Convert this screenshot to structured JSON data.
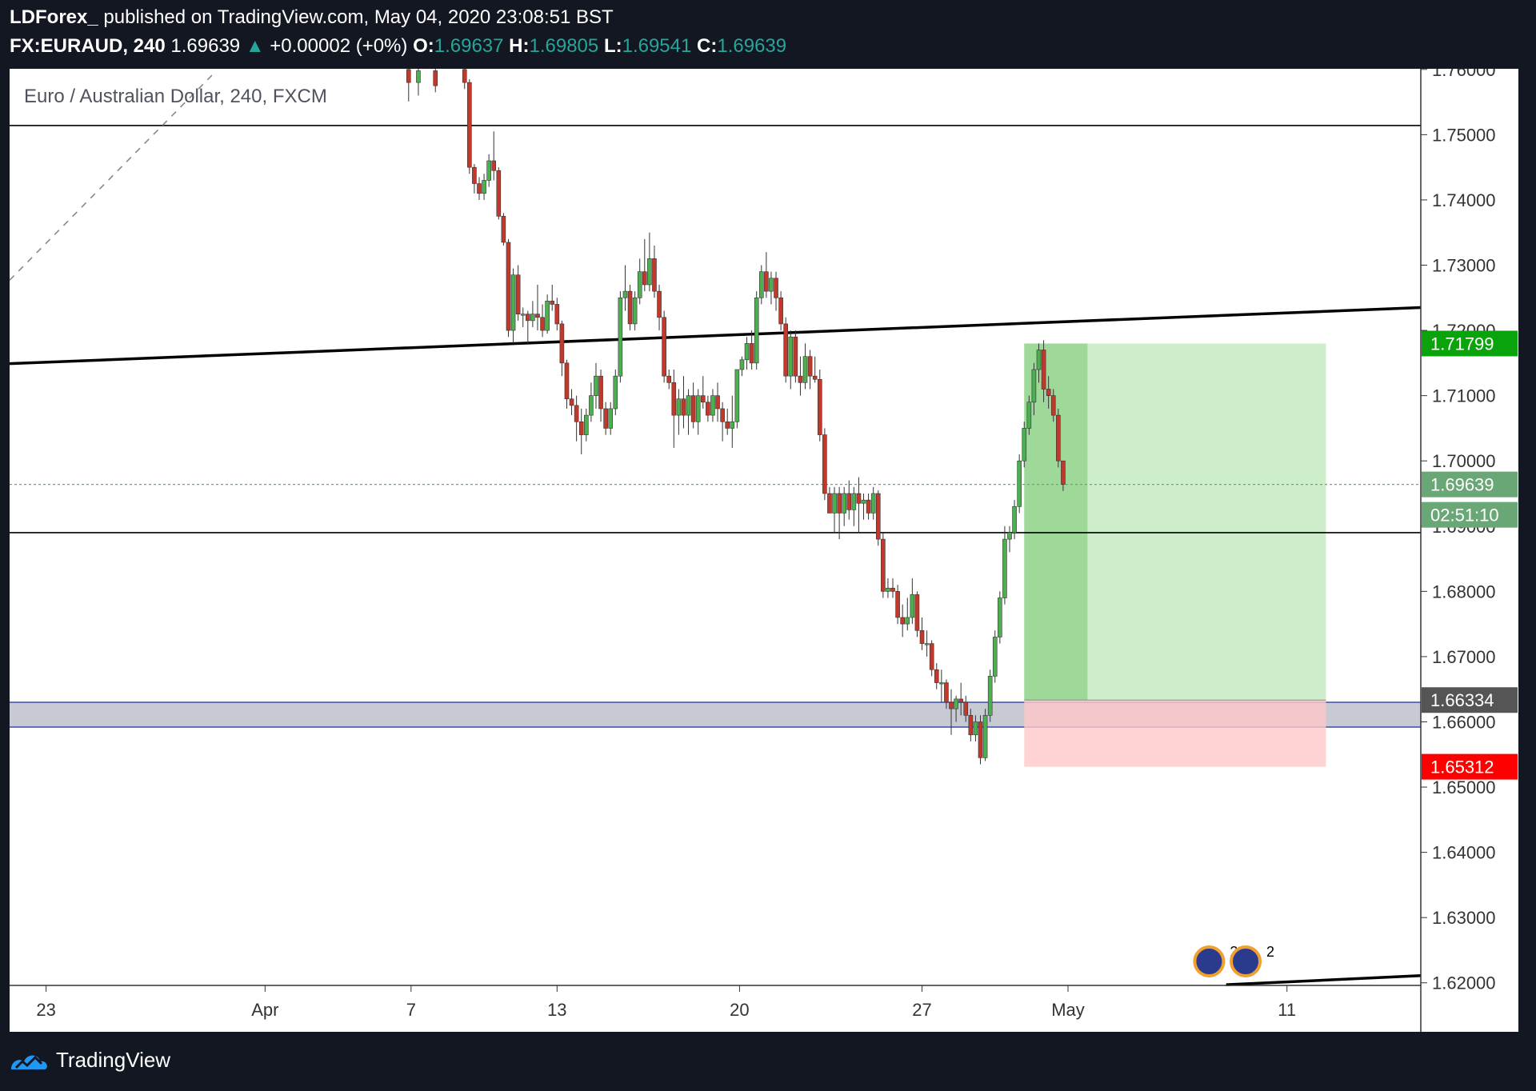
{
  "header": {
    "publisher": "LDForex_",
    "published_text": "published on TradingView.com, May 04, 2020 23:08:51 BST",
    "symbol": "FX:EURAUD, 240",
    "last_price": "1.69639",
    "change": "+0.00002 (+0%)",
    "o_label": "O:",
    "o_value": "1.69637",
    "h_label": "H:",
    "h_value": "1.69805",
    "l_label": "L:",
    "l_value": "1.69541",
    "c_label": "C:",
    "c_value": "1.69639"
  },
  "footer": {
    "brand": "TradingView"
  },
  "colors": {
    "up": "#4caf50",
    "down": "#c0392b",
    "profit_zone": "#c8ebc5",
    "profit_strong": "#8fd18a",
    "loss_zone": "#ffc8c8",
    "support_zone": "#c7c9d3",
    "support_border": "#3d4ca8",
    "price_current": "#6aa776",
    "price_target": "#0ba30b",
    "price_stop": "#ff0000",
    "price_entry": "#555555"
  },
  "chart_data": {
    "type": "candlestick",
    "title": "Euro / Australian Dollar, 240, FXCM",
    "y_axis": {
      "ticks": [
        "1.76000",
        "1.75000",
        "1.74000",
        "1.73000",
        "1.72000",
        "1.71000",
        "1.70000",
        "1.69000",
        "1.68000",
        "1.67000",
        "1.66000",
        "1.65000",
        "1.64000",
        "1.63000",
        "1.62000"
      ],
      "range": [
        1.6196,
        1.7601
      ]
    },
    "x_axis": {
      "ticks": [
        {
          "label": "23",
          "value": 0
        },
        {
          "label": "Apr",
          "value": 9
        },
        {
          "label": "7",
          "value": 15
        },
        {
          "label": "13",
          "value": 21
        },
        {
          "label": "20",
          "value": 28.5
        },
        {
          "label": "27",
          "value": 36
        },
        {
          "label": "May",
          "value": 42
        },
        {
          "label": "11",
          "value": 51
        }
      ],
      "range": [
        -1.5,
        56.5
      ]
    },
    "price_labels": {
      "target": "1.71799",
      "current": "1.69639",
      "countdown": "02:51:10",
      "entry": "1.66334",
      "stop": "1.65312"
    },
    "horizontal_lines": [
      1.7514,
      1.689
    ],
    "trendlines": [
      {
        "x1": -1.5,
        "y1": 1.7149,
        "x2": 56.5,
        "y2": 1.7235,
        "style": "solid"
      },
      {
        "x1": -1.5,
        "y1": 1.7277,
        "x2": 7.0,
        "y2": 1.7598,
        "style": "dashed"
      },
      {
        "x1": 48.5,
        "y1": 1.6197,
        "x2": 56.5,
        "y2": 1.6211,
        "style": "solid"
      }
    ],
    "support_zone": {
      "top": 1.663,
      "bottom": 1.6592
    },
    "position": {
      "entry": 1.66334,
      "target": 1.71799,
      "stop": 1.65312,
      "x_start": 40.2,
      "x_end": 52.6,
      "filled_until": 42.8
    },
    "candles": [
      {
        "x": 14.9,
        "o": 1.76,
        "h": 1.7602,
        "l": 1.7551,
        "c": 1.758
      },
      {
        "x": 15.3,
        "o": 1.758,
        "h": 1.7602,
        "l": 1.756,
        "c": 1.7598
      },
      {
        "x": 16.0,
        "o": 1.7598,
        "h": 1.7602,
        "l": 1.7565,
        "c": 1.7575
      },
      {
        "x": 17.2,
        "o": 1.76,
        "h": 1.7602,
        "l": 1.757,
        "c": 1.758
      },
      {
        "x": 17.4,
        "o": 1.758,
        "h": 1.7585,
        "l": 1.744,
        "c": 1.745
      },
      {
        "x": 17.6,
        "o": 1.745,
        "h": 1.7455,
        "l": 1.741,
        "c": 1.7425
      },
      {
        "x": 17.8,
        "o": 1.7425,
        "h": 1.7435,
        "l": 1.74,
        "c": 1.741
      },
      {
        "x": 18.0,
        "o": 1.741,
        "h": 1.744,
        "l": 1.74,
        "c": 1.743
      },
      {
        "x": 18.2,
        "o": 1.743,
        "h": 1.747,
        "l": 1.742,
        "c": 1.746
      },
      {
        "x": 18.4,
        "o": 1.746,
        "h": 1.7505,
        "l": 1.743,
        "c": 1.7445
      },
      {
        "x": 18.6,
        "o": 1.7445,
        "h": 1.745,
        "l": 1.737,
        "c": 1.7375
      },
      {
        "x": 18.8,
        "o": 1.7375,
        "h": 1.738,
        "l": 1.733,
        "c": 1.7335
      },
      {
        "x": 19.0,
        "o": 1.7335,
        "h": 1.734,
        "l": 1.719,
        "c": 1.72
      },
      {
        "x": 19.2,
        "o": 1.72,
        "h": 1.7295,
        "l": 1.718,
        "c": 1.7285
      },
      {
        "x": 19.4,
        "o": 1.7285,
        "h": 1.73,
        "l": 1.7215,
        "c": 1.7225
      },
      {
        "x": 19.6,
        "o": 1.7225,
        "h": 1.7235,
        "l": 1.7205,
        "c": 1.7225
      },
      {
        "x": 19.8,
        "o": 1.7225,
        "h": 1.723,
        "l": 1.718,
        "c": 1.7215
      },
      {
        "x": 20.0,
        "o": 1.7215,
        "h": 1.7245,
        "l": 1.7205,
        "c": 1.7225
      },
      {
        "x": 20.2,
        "o": 1.7225,
        "h": 1.727,
        "l": 1.72,
        "c": 1.722
      },
      {
        "x": 20.4,
        "o": 1.722,
        "h": 1.724,
        "l": 1.719,
        "c": 1.72
      },
      {
        "x": 20.6,
        "o": 1.72,
        "h": 1.7255,
        "l": 1.7195,
        "c": 1.7245
      },
      {
        "x": 20.8,
        "o": 1.7245,
        "h": 1.727,
        "l": 1.723,
        "c": 1.724
      },
      {
        "x": 21.0,
        "o": 1.724,
        "h": 1.725,
        "l": 1.72,
        "c": 1.721
      },
      {
        "x": 21.2,
        "o": 1.721,
        "h": 1.7215,
        "l": 1.713,
        "c": 1.715
      },
      {
        "x": 21.4,
        "o": 1.715,
        "h": 1.7155,
        "l": 1.708,
        "c": 1.7095
      },
      {
        "x": 21.6,
        "o": 1.7095,
        "h": 1.711,
        "l": 1.707,
        "c": 1.7085
      },
      {
        "x": 21.8,
        "o": 1.7085,
        "h": 1.71,
        "l": 1.703,
        "c": 1.706
      },
      {
        "x": 22.0,
        "o": 1.706,
        "h": 1.708,
        "l": 1.701,
        "c": 1.704
      },
      {
        "x": 22.2,
        "o": 1.704,
        "h": 1.708,
        "l": 1.703,
        "c": 1.707
      },
      {
        "x": 22.4,
        "o": 1.707,
        "h": 1.712,
        "l": 1.706,
        "c": 1.71
      },
      {
        "x": 22.6,
        "o": 1.71,
        "h": 1.715,
        "l": 1.708,
        "c": 1.713
      },
      {
        "x": 22.8,
        "o": 1.713,
        "h": 1.714,
        "l": 1.706,
        "c": 1.708
      },
      {
        "x": 23.0,
        "o": 1.708,
        "h": 1.709,
        "l": 1.704,
        "c": 1.705
      },
      {
        "x": 23.2,
        "o": 1.705,
        "h": 1.709,
        "l": 1.704,
        "c": 1.708
      },
      {
        "x": 23.4,
        "o": 1.708,
        "h": 1.714,
        "l": 1.707,
        "c": 1.713
      },
      {
        "x": 23.6,
        "o": 1.713,
        "h": 1.726,
        "l": 1.712,
        "c": 1.725
      },
      {
        "x": 23.8,
        "o": 1.725,
        "h": 1.73,
        "l": 1.723,
        "c": 1.726
      },
      {
        "x": 24.0,
        "o": 1.726,
        "h": 1.727,
        "l": 1.72,
        "c": 1.721
      },
      {
        "x": 24.2,
        "o": 1.721,
        "h": 1.726,
        "l": 1.72,
        "c": 1.725
      },
      {
        "x": 24.4,
        "o": 1.725,
        "h": 1.731,
        "l": 1.724,
        "c": 1.729
      },
      {
        "x": 24.6,
        "o": 1.729,
        "h": 1.734,
        "l": 1.726,
        "c": 1.727
      },
      {
        "x": 24.8,
        "o": 1.727,
        "h": 1.735,
        "l": 1.726,
        "c": 1.731
      },
      {
        "x": 25.0,
        "o": 1.731,
        "h": 1.733,
        "l": 1.725,
        "c": 1.726
      },
      {
        "x": 25.2,
        "o": 1.726,
        "h": 1.727,
        "l": 1.72,
        "c": 1.722
      },
      {
        "x": 25.4,
        "o": 1.722,
        "h": 1.723,
        "l": 1.712,
        "c": 1.713
      },
      {
        "x": 25.6,
        "o": 1.713,
        "h": 1.714,
        "l": 1.711,
        "c": 1.712
      },
      {
        "x": 25.8,
        "o": 1.712,
        "h": 1.714,
        "l": 1.702,
        "c": 1.707
      },
      {
        "x": 26.0,
        "o": 1.707,
        "h": 1.711,
        "l": 1.704,
        "c": 1.7095
      },
      {
        "x": 26.2,
        "o": 1.7095,
        "h": 1.713,
        "l": 1.705,
        "c": 1.707
      },
      {
        "x": 26.4,
        "o": 1.707,
        "h": 1.711,
        "l": 1.704,
        "c": 1.71
      },
      {
        "x": 26.6,
        "o": 1.71,
        "h": 1.712,
        "l": 1.705,
        "c": 1.706
      },
      {
        "x": 26.8,
        "o": 1.706,
        "h": 1.711,
        "l": 1.704,
        "c": 1.71
      },
      {
        "x": 27.0,
        "o": 1.71,
        "h": 1.713,
        "l": 1.708,
        "c": 1.709
      },
      {
        "x": 27.2,
        "o": 1.709,
        "h": 1.71,
        "l": 1.706,
        "c": 1.707
      },
      {
        "x": 27.4,
        "o": 1.707,
        "h": 1.711,
        "l": 1.706,
        "c": 1.71
      },
      {
        "x": 27.6,
        "o": 1.71,
        "h": 1.712,
        "l": 1.706,
        "c": 1.708
      },
      {
        "x": 27.8,
        "o": 1.708,
        "h": 1.709,
        "l": 1.703,
        "c": 1.706
      },
      {
        "x": 28.0,
        "o": 1.706,
        "h": 1.708,
        "l": 1.704,
        "c": 1.705
      },
      {
        "x": 28.2,
        "o": 1.705,
        "h": 1.71,
        "l": 1.702,
        "c": 1.706
      },
      {
        "x": 28.4,
        "o": 1.706,
        "h": 1.714,
        "l": 1.705,
        "c": 1.714
      },
      {
        "x": 28.6,
        "o": 1.714,
        "h": 1.716,
        "l": 1.713,
        "c": 1.7155
      },
      {
        "x": 28.8,
        "o": 1.7155,
        "h": 1.719,
        "l": 1.714,
        "c": 1.718
      },
      {
        "x": 29.0,
        "o": 1.718,
        "h": 1.72,
        "l": 1.714,
        "c": 1.715
      },
      {
        "x": 29.2,
        "o": 1.715,
        "h": 1.726,
        "l": 1.714,
        "c": 1.725
      },
      {
        "x": 29.4,
        "o": 1.725,
        "h": 1.73,
        "l": 1.724,
        "c": 1.729
      },
      {
        "x": 29.6,
        "o": 1.729,
        "h": 1.732,
        "l": 1.725,
        "c": 1.726
      },
      {
        "x": 29.8,
        "o": 1.726,
        "h": 1.729,
        "l": 1.724,
        "c": 1.728
      },
      {
        "x": 30.0,
        "o": 1.728,
        "h": 1.729,
        "l": 1.723,
        "c": 1.725
      },
      {
        "x": 30.2,
        "o": 1.725,
        "h": 1.726,
        "l": 1.72,
        "c": 1.721
      },
      {
        "x": 30.4,
        "o": 1.721,
        "h": 1.722,
        "l": 1.712,
        "c": 1.713
      },
      {
        "x": 30.6,
        "o": 1.713,
        "h": 1.72,
        "l": 1.711,
        "c": 1.719
      },
      {
        "x": 30.8,
        "o": 1.719,
        "h": 1.72,
        "l": 1.712,
        "c": 1.713
      },
      {
        "x": 31.0,
        "o": 1.713,
        "h": 1.716,
        "l": 1.71,
        "c": 1.712
      },
      {
        "x": 31.2,
        "o": 1.712,
        "h": 1.718,
        "l": 1.711,
        "c": 1.716
      },
      {
        "x": 31.4,
        "o": 1.716,
        "h": 1.717,
        "l": 1.711,
        "c": 1.713
      },
      {
        "x": 31.6,
        "o": 1.713,
        "h": 1.716,
        "l": 1.712,
        "c": 1.7125
      },
      {
        "x": 31.8,
        "o": 1.7125,
        "h": 1.714,
        "l": 1.703,
        "c": 1.704
      },
      {
        "x": 32.0,
        "o": 1.704,
        "h": 1.705,
        "l": 1.694,
        "c": 1.695
      },
      {
        "x": 32.2,
        "o": 1.695,
        "h": 1.696,
        "l": 1.692,
        "c": 1.692
      },
      {
        "x": 32.4,
        "o": 1.692,
        "h": 1.696,
        "l": 1.689,
        "c": 1.695
      },
      {
        "x": 32.6,
        "o": 1.695,
        "h": 1.696,
        "l": 1.688,
        "c": 1.692
      },
      {
        "x": 32.8,
        "o": 1.692,
        "h": 1.696,
        "l": 1.69,
        "c": 1.695
      },
      {
        "x": 33.0,
        "o": 1.695,
        "h": 1.697,
        "l": 1.691,
        "c": 1.6925
      },
      {
        "x": 33.2,
        "o": 1.6925,
        "h": 1.696,
        "l": 1.69,
        "c": 1.695
      },
      {
        "x": 33.4,
        "o": 1.695,
        "h": 1.6975,
        "l": 1.689,
        "c": 1.6935
      },
      {
        "x": 33.6,
        "o": 1.6935,
        "h": 1.695,
        "l": 1.691,
        "c": 1.694
      },
      {
        "x": 33.8,
        "o": 1.694,
        "h": 1.695,
        "l": 1.691,
        "c": 1.692
      },
      {
        "x": 34.0,
        "o": 1.692,
        "h": 1.696,
        "l": 1.691,
        "c": 1.695
      },
      {
        "x": 34.2,
        "o": 1.695,
        "h": 1.6955,
        "l": 1.687,
        "c": 1.688
      },
      {
        "x": 34.4,
        "o": 1.688,
        "h": 1.689,
        "l": 1.679,
        "c": 1.68
      },
      {
        "x": 34.6,
        "o": 1.68,
        "h": 1.682,
        "l": 1.679,
        "c": 1.6805
      },
      {
        "x": 34.8,
        "o": 1.6805,
        "h": 1.682,
        "l": 1.679,
        "c": 1.68
      },
      {
        "x": 35.0,
        "o": 1.68,
        "h": 1.681,
        "l": 1.675,
        "c": 1.676
      },
      {
        "x": 35.2,
        "o": 1.676,
        "h": 1.678,
        "l": 1.673,
        "c": 1.675
      },
      {
        "x": 35.4,
        "o": 1.675,
        "h": 1.679,
        "l": 1.674,
        "c": 1.676
      },
      {
        "x": 35.6,
        "o": 1.676,
        "h": 1.682,
        "l": 1.675,
        "c": 1.6795
      },
      {
        "x": 35.8,
        "o": 1.6795,
        "h": 1.68,
        "l": 1.673,
        "c": 1.674
      },
      {
        "x": 36.0,
        "o": 1.674,
        "h": 1.676,
        "l": 1.671,
        "c": 1.672
      },
      {
        "x": 36.2,
        "o": 1.672,
        "h": 1.674,
        "l": 1.67,
        "c": 1.672
      },
      {
        "x": 36.4,
        "o": 1.672,
        "h": 1.6725,
        "l": 1.667,
        "c": 1.668
      },
      {
        "x": 36.6,
        "o": 1.668,
        "h": 1.669,
        "l": 1.665,
        "c": 1.666
      },
      {
        "x": 36.8,
        "o": 1.666,
        "h": 1.668,
        "l": 1.663,
        "c": 1.666
      },
      {
        "x": 37.0,
        "o": 1.666,
        "h": 1.6665,
        "l": 1.662,
        "c": 1.663
      },
      {
        "x": 37.2,
        "o": 1.663,
        "h": 1.665,
        "l": 1.658,
        "c": 1.662
      },
      {
        "x": 37.4,
        "o": 1.662,
        "h": 1.664,
        "l": 1.66,
        "c": 1.6635
      },
      {
        "x": 37.6,
        "o": 1.6635,
        "h": 1.666,
        "l": 1.661,
        "c": 1.663
      },
      {
        "x": 37.8,
        "o": 1.663,
        "h": 1.664,
        "l": 1.66,
        "c": 1.661
      },
      {
        "x": 38.0,
        "o": 1.661,
        "h": 1.662,
        "l": 1.657,
        "c": 1.658
      },
      {
        "x": 38.2,
        "o": 1.658,
        "h": 1.661,
        "l": 1.657,
        "c": 1.66
      },
      {
        "x": 38.4,
        "o": 1.66,
        "h": 1.661,
        "l": 1.6535,
        "c": 1.6545
      },
      {
        "x": 38.6,
        "o": 1.6545,
        "h": 1.662,
        "l": 1.654,
        "c": 1.661
      },
      {
        "x": 38.8,
        "o": 1.661,
        "h": 1.668,
        "l": 1.66,
        "c": 1.667
      },
      {
        "x": 39.0,
        "o": 1.667,
        "h": 1.674,
        "l": 1.666,
        "c": 1.673
      },
      {
        "x": 39.2,
        "o": 1.673,
        "h": 1.68,
        "l": 1.672,
        "c": 1.679
      },
      {
        "x": 39.4,
        "o": 1.679,
        "h": 1.69,
        "l": 1.678,
        "c": 1.688
      },
      {
        "x": 39.6,
        "o": 1.688,
        "h": 1.69,
        "l": 1.686,
        "c": 1.689
      },
      {
        "x": 39.8,
        "o": 1.689,
        "h": 1.694,
        "l": 1.688,
        "c": 1.693
      },
      {
        "x": 40.0,
        "o": 1.693,
        "h": 1.701,
        "l": 1.692,
        "c": 1.7
      },
      {
        "x": 40.2,
        "o": 1.7,
        "h": 1.706,
        "l": 1.699,
        "c": 1.705
      },
      {
        "x": 40.4,
        "o": 1.705,
        "h": 1.71,
        "l": 1.704,
        "c": 1.709
      },
      {
        "x": 40.6,
        "o": 1.709,
        "h": 1.715,
        "l": 1.707,
        "c": 1.714
      },
      {
        "x": 40.8,
        "o": 1.714,
        "h": 1.718,
        "l": 1.712,
        "c": 1.717
      },
      {
        "x": 41.0,
        "o": 1.717,
        "h": 1.7185,
        "l": 1.709,
        "c": 1.711
      },
      {
        "x": 41.2,
        "o": 1.711,
        "h": 1.713,
        "l": 1.708,
        "c": 1.71
      },
      {
        "x": 41.4,
        "o": 1.71,
        "h": 1.711,
        "l": 1.706,
        "c": 1.707
      },
      {
        "x": 41.6,
        "o": 1.707,
        "h": 1.708,
        "l": 1.699,
        "c": 1.7
      },
      {
        "x": 41.8,
        "o": 1.7,
        "h": 1.7,
        "l": 1.6954,
        "c": 1.6964
      }
    ],
    "event_markers": [
      {
        "x": 47.8,
        "label": "2"
      },
      {
        "x": 49.3,
        "label": "2"
      }
    ]
  }
}
